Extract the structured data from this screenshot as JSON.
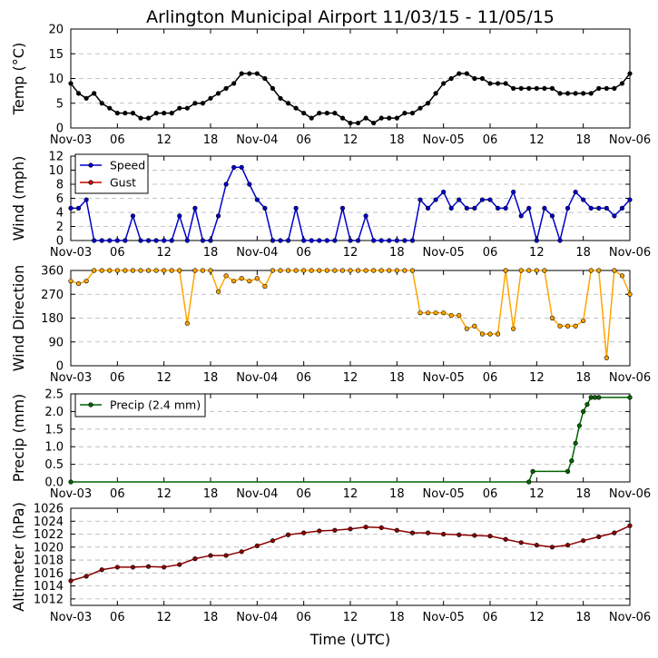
{
  "title": "Arlington Municipal Airport 11/03/15 - 11/05/15",
  "x_axis_label": "Time (UTC)",
  "x_tick_labels": [
    "Nov-03",
    "06",
    "12",
    "18",
    "Nov-04",
    "06",
    "12",
    "18",
    "Nov-05",
    "06",
    "12",
    "18",
    "Nov-06"
  ],
  "colors": {
    "temp": "#000000",
    "speed": "#0000cc",
    "gust": "#cc0000",
    "direction": "#ffa500",
    "precip": "#006400",
    "altimeter": "#8b0000"
  },
  "chart_data": [
    {
      "id": "temp",
      "type": "line",
      "ylabel": "Temp (°C)",
      "ylim": [
        0,
        20
      ],
      "yticks": [
        0,
        5,
        10,
        15,
        20
      ],
      "x_hours": [
        0,
        1,
        2,
        3,
        4,
        5,
        6,
        7,
        8,
        9,
        10,
        11,
        12,
        13,
        14,
        15,
        16,
        17,
        18,
        19,
        20,
        21,
        22,
        23,
        24,
        25,
        26,
        27,
        28,
        29,
        30,
        31,
        32,
        33,
        34,
        35,
        36,
        37,
        38,
        39,
        40,
        41,
        42,
        43,
        44,
        45,
        46,
        47,
        48,
        49,
        50,
        51,
        52,
        53,
        54,
        55,
        56,
        57,
        58,
        59,
        60,
        61,
        62,
        63,
        64,
        65,
        66,
        67,
        68,
        69,
        70,
        71,
        72
      ],
      "series": [
        {
          "name": "Temp",
          "values": [
            9,
            7,
            6,
            7,
            5,
            4,
            3,
            3,
            3,
            2,
            2,
            3,
            3,
            3,
            4,
            4,
            5,
            5,
            6,
            7,
            8,
            9,
            11,
            11,
            11,
            10,
            8,
            6,
            5,
            4,
            3,
            2,
            3,
            3,
            3,
            2,
            1,
            1,
            2,
            1,
            2,
            2,
            2,
            3,
            3,
            4,
            5,
            7,
            9,
            10,
            11,
            11,
            10,
            10,
            9,
            9,
            9,
            8,
            8,
            8,
            8,
            8,
            8,
            7,
            7,
            7,
            7,
            7,
            8,
            8,
            8,
            9,
            11
          ]
        }
      ]
    },
    {
      "id": "wind",
      "type": "line",
      "ylabel": "Wind (mph)",
      "ylim": [
        0,
        12
      ],
      "yticks": [
        0,
        2,
        4,
        6,
        8,
        10,
        12
      ],
      "legend": [
        "Speed",
        "Gust"
      ],
      "x_hours": [
        0,
        1,
        2,
        3,
        4,
        5,
        6,
        7,
        8,
        9,
        10,
        11,
        12,
        13,
        14,
        15,
        16,
        17,
        18,
        19,
        20,
        21,
        22,
        23,
        24,
        25,
        26,
        27,
        28,
        29,
        30,
        31,
        32,
        33,
        34,
        35,
        36,
        37,
        38,
        39,
        40,
        41,
        42,
        43,
        44,
        45,
        46,
        47,
        48,
        49,
        50,
        51,
        52,
        53,
        54,
        55,
        56,
        57,
        58,
        59,
        60,
        61,
        62,
        63,
        64,
        65,
        66,
        67,
        68,
        69,
        70,
        71,
        72
      ],
      "series": [
        {
          "name": "Speed",
          "values": [
            4.6,
            4.6,
            5.8,
            0,
            0,
            0,
            0,
            0,
            3.5,
            0,
            0,
            0,
            0,
            0,
            3.5,
            0,
            4.6,
            0,
            0,
            3.5,
            8,
            10.4,
            10.4,
            8,
            5.8,
            4.6,
            0,
            0,
            0,
            4.6,
            0,
            0,
            0,
            0,
            0,
            4.6,
            0,
            0,
            3.5,
            0,
            0,
            0,
            0,
            0,
            0,
            5.8,
            4.6,
            5.8,
            6.9,
            4.6,
            5.8,
            4.6,
            4.6,
            5.8,
            5.8,
            4.6,
            4.6,
            6.9,
            3.5,
            4.6,
            0,
            4.6,
            3.5,
            0,
            4.6,
            6.9,
            5.8,
            4.6,
            4.6,
            4.6,
            3.5,
            4.6,
            5.8
          ]
        },
        {
          "name": "Gust",
          "values": []
        }
      ]
    },
    {
      "id": "direction",
      "type": "line",
      "ylabel": "Wind Direction",
      "ylim": [
        0,
        360
      ],
      "yticks": [
        0,
        90,
        180,
        270,
        360
      ],
      "x_hours": [
        0,
        1,
        2,
        3,
        4,
        5,
        6,
        7,
        8,
        9,
        10,
        11,
        12,
        13,
        14,
        15,
        16,
        17,
        18,
        19,
        20,
        21,
        22,
        23,
        24,
        25,
        26,
        27,
        28,
        29,
        30,
        31,
        32,
        33,
        34,
        35,
        36,
        37,
        38,
        39,
        40,
        41,
        42,
        43,
        44,
        45,
        46,
        47,
        48,
        49,
        50,
        51,
        52,
        53,
        54,
        55,
        56,
        57,
        58,
        59,
        60,
        61,
        62,
        63,
        64,
        65,
        66,
        67,
        68,
        69,
        70,
        71,
        72
      ],
      "series": [
        {
          "name": "Direction",
          "values": [
            320,
            310,
            320,
            360,
            360,
            360,
            360,
            360,
            360,
            360,
            360,
            360,
            360,
            360,
            360,
            160,
            360,
            360,
            360,
            280,
            340,
            320,
            330,
            320,
            330,
            300,
            360,
            360,
            360,
            360,
            360,
            360,
            360,
            360,
            360,
            360,
            360,
            360,
            360,
            360,
            360,
            360,
            360,
            360,
            360,
            200,
            200,
            200,
            200,
            190,
            190,
            140,
            150,
            120,
            120,
            120,
            360,
            140,
            360,
            360,
            360,
            360,
            180,
            150,
            150,
            150,
            170,
            360,
            360,
            30,
            360,
            340,
            270
          ]
        }
      ]
    },
    {
      "id": "precip",
      "type": "line",
      "ylabel": "Precip (mm)",
      "ylim": [
        0,
        2.5
      ],
      "yticks": [
        0.0,
        0.5,
        1.0,
        1.5,
        2.0,
        2.5
      ],
      "ytick_labels": [
        "0.0",
        "0.5",
        "1.0",
        "1.5",
        "2.0",
        "2.5"
      ],
      "legend": [
        "Precip (2.4 mm)"
      ],
      "x_hours": [
        0,
        59,
        59.5,
        64,
        64.5,
        65,
        65.5,
        66,
        66.5,
        67,
        67.5,
        68,
        72
      ],
      "series": [
        {
          "name": "Precip",
          "values": [
            0,
            0,
            0.3,
            0.3,
            0.6,
            1.1,
            1.6,
            2.0,
            2.2,
            2.4,
            2.4,
            2.4,
            2.4
          ]
        }
      ]
    },
    {
      "id": "altimeter",
      "type": "line",
      "ylabel": "Altimeter (hPa)",
      "ylim": [
        1011,
        1026
      ],
      "yticks": [
        1012,
        1014,
        1016,
        1018,
        1020,
        1022,
        1024,
        1026
      ],
      "x_hours": [
        0,
        2,
        4,
        6,
        8,
        10,
        12,
        14,
        16,
        18,
        20,
        22,
        24,
        26,
        28,
        30,
        32,
        34,
        36,
        38,
        40,
        42,
        44,
        46,
        48,
        50,
        52,
        54,
        56,
        58,
        60,
        62,
        64,
        66,
        68,
        70,
        72
      ],
      "series": [
        {
          "name": "Altimeter",
          "values": [
            1014.8,
            1015.5,
            1016.5,
            1016.9,
            1016.9,
            1017.0,
            1016.9,
            1017.3,
            1018.2,
            1018.7,
            1018.7,
            1019.3,
            1020.2,
            1021.0,
            1021.9,
            1022.2,
            1022.5,
            1022.6,
            1022.8,
            1023.1,
            1023.0,
            1022.6,
            1022.2,
            1022.2,
            1022.0,
            1021.9,
            1021.8,
            1021.7,
            1021.2,
            1020.7,
            1020.3,
            1020.0,
            1020.3,
            1021.0,
            1021.6,
            1022.2,
            1023.3
          ]
        }
      ]
    }
  ]
}
